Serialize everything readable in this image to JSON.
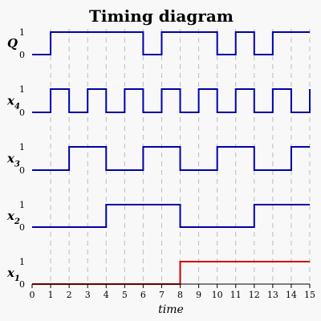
{
  "chart_data": {
    "type": "timing-diagram",
    "title": "Timing diagram",
    "xlabel": "time",
    "x_ticks": [
      "0",
      "1",
      "2",
      "3",
      "4",
      "5",
      "6",
      "7",
      "8",
      "9",
      "10",
      "11",
      "12",
      "13",
      "14",
      "15"
    ],
    "xlim": [
      0,
      15
    ],
    "grid": true,
    "level_labels": {
      "low": "0",
      "high": "1"
    },
    "signals": [
      {
        "name": "Q",
        "subscript": "",
        "color": "#0000aa",
        "times": [
          0,
          1,
          6,
          7,
          10,
          11,
          12,
          13,
          15
        ],
        "levels": [
          0,
          1,
          0,
          1,
          0,
          1,
          0,
          1,
          1
        ]
      },
      {
        "name": "x",
        "subscript": "4",
        "color": "#0000aa",
        "times": [
          0,
          1,
          2,
          3,
          4,
          5,
          6,
          7,
          8,
          9,
          10,
          11,
          12,
          13,
          14,
          15
        ],
        "levels": [
          0,
          1,
          0,
          1,
          0,
          1,
          0,
          1,
          0,
          1,
          0,
          1,
          0,
          1,
          0,
          1
        ]
      },
      {
        "name": "x",
        "subscript": "3",
        "color": "#0000aa",
        "times": [
          0,
          2,
          4,
          6,
          8,
          10,
          12,
          14,
          15
        ],
        "levels": [
          0,
          1,
          0,
          1,
          0,
          1,
          0,
          1,
          1
        ]
      },
      {
        "name": "x",
        "subscript": "2",
        "color": "#0000aa",
        "times": [
          0,
          4,
          8,
          12,
          15
        ],
        "levels": [
          0,
          1,
          0,
          1,
          1
        ]
      },
      {
        "name": "x",
        "subscript": "1",
        "color": "#cc0000",
        "times": [
          0,
          8,
          15
        ],
        "levels": [
          0,
          1,
          1
        ]
      }
    ]
  }
}
